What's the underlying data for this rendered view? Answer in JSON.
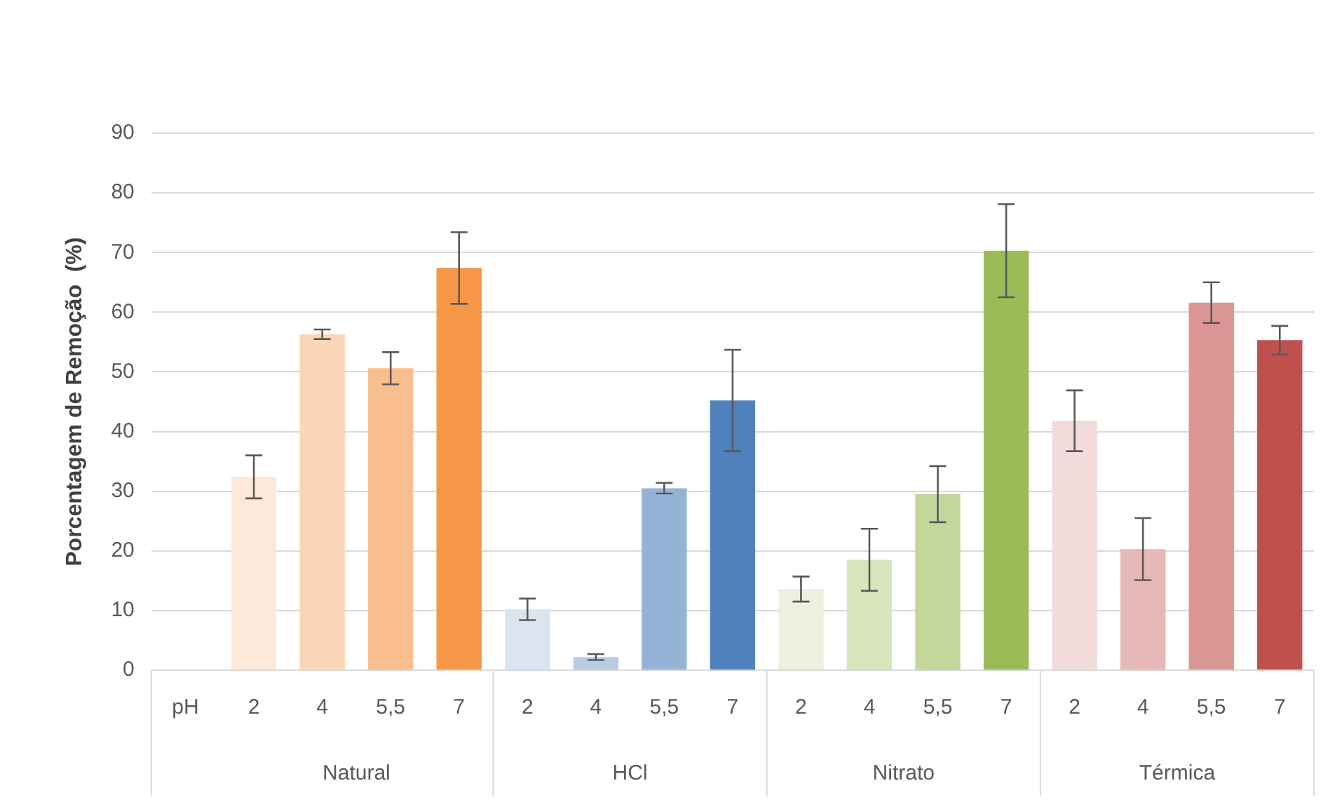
{
  "chart_data": {
    "type": "bar",
    "ylabel": "Porcentagem de Remoção  (%)",
    "categories": [
      "pH",
      "2",
      "4",
      "5,5",
      "7",
      "2",
      "4",
      "5,5",
      "7",
      "2",
      "4",
      "5,5",
      "7",
      "2",
      "4",
      "5,5",
      "7"
    ],
    "values": [
      null,
      32.4,
      56.3,
      50.6,
      67.4,
      10.2,
      2.2,
      30.5,
      45.2,
      13.6,
      18.5,
      29.5,
      70.3,
      41.8,
      20.3,
      61.6,
      55.3
    ],
    "errors": [
      null,
      3.6,
      0.8,
      2.7,
      6,
      1.8,
      0.5,
      0.9,
      8.5,
      2.1,
      5.2,
      4.7,
      7.8,
      5.1,
      5.2,
      3.4,
      2.4
    ],
    "colors": [
      "#ffffff",
      "#fde9d9",
      "#fbd5b5",
      "#f9be8e",
      "#f79646",
      "#dbe5f1",
      "#b8cce4",
      "#95b3d7",
      "#4f81bd",
      "#ebf1de",
      "#d7e4bc",
      "#c4d79b",
      "#9bbb59",
      "#f2dcdb",
      "#e6b8b7",
      "#da9694",
      "#c0504d"
    ],
    "ylim": [
      0,
      90
    ],
    "yticks": [
      0,
      10,
      20,
      30,
      40,
      50,
      60,
      70,
      80,
      90
    ],
    "grid": "y",
    "legend": false,
    "annotations": [
      "Natural",
      "HCl",
      "Nitrato",
      "Térmica"
    ]
  }
}
